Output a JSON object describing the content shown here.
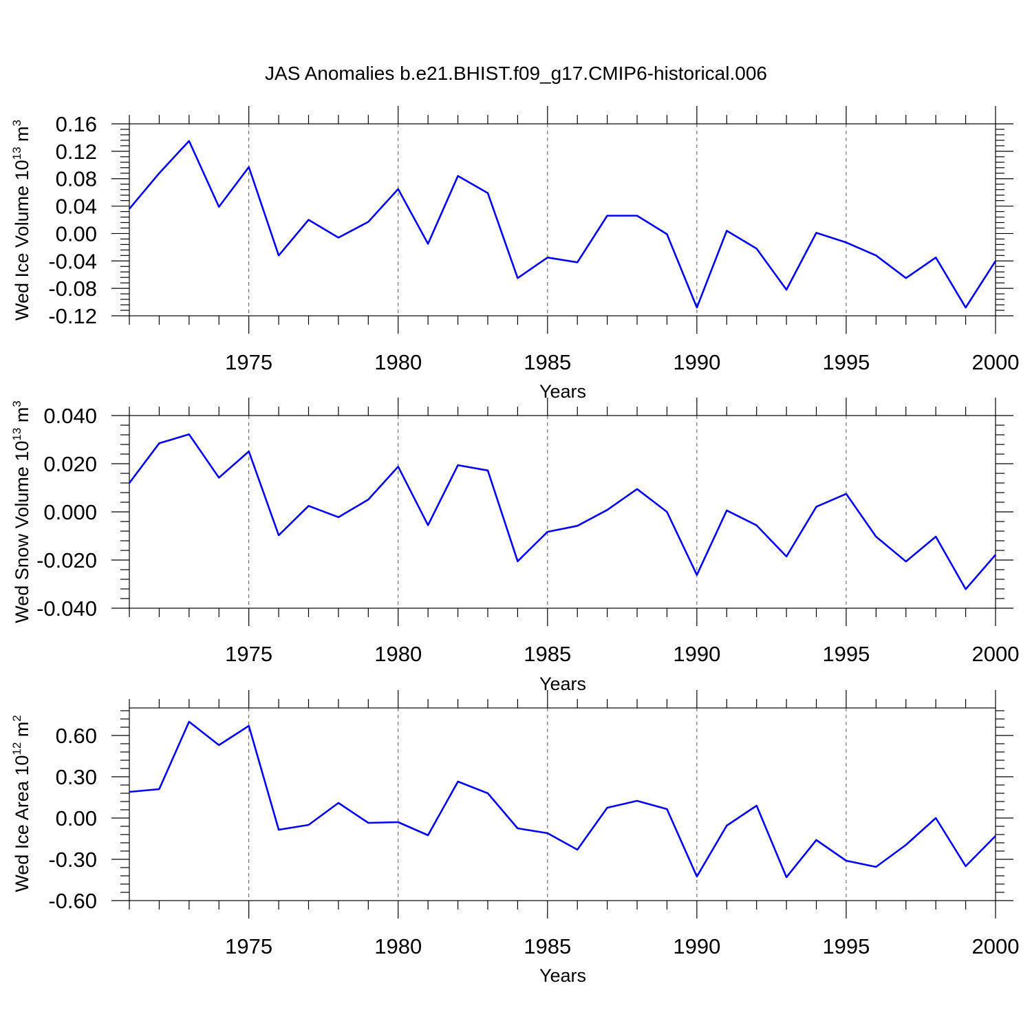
{
  "title": "JAS Anomalies b.e21.BHIST.f09_g17.CMIP6-historical.006",
  "colors": {
    "line": "#0000ff",
    "axis": "#000000",
    "grid": "#555555"
  },
  "chart_data": [
    {
      "type": "line",
      "ylabel": {
        "text": "Wed Ice Volume 10",
        "sup": "13",
        "unit": " m",
        "unit_sup": "3"
      },
      "xlabel": "Years",
      "xlim": [
        1971,
        2000
      ],
      "ylim": [
        -0.12,
        0.16
      ],
      "yticks": [
        -0.12,
        -0.08,
        -0.04,
        0.0,
        0.04,
        0.08,
        0.12,
        0.16
      ],
      "ytick_labels": [
        "-0.12",
        "-0.08",
        "-0.04",
        "0.00",
        "0.04",
        "0.08",
        "0.12",
        "0.16"
      ],
      "xticks": [
        1975,
        1980,
        1985,
        1990,
        1995,
        2000
      ],
      "xtick_labels": [
        "1975",
        "1980",
        "1985",
        "1990",
        "1995",
        "2000"
      ],
      "grid": "x-dashed",
      "x": [
        1971,
        1972,
        1973,
        1974,
        1975,
        1976,
        1977,
        1978,
        1979,
        1980,
        1981,
        1982,
        1983,
        1984,
        1985,
        1986,
        1987,
        1988,
        1989,
        1990,
        1991,
        1992,
        1993,
        1994,
        1995,
        1996,
        1997,
        1998,
        1999,
        2000
      ],
      "y": [
        0.036,
        0.088,
        0.135,
        0.039,
        0.097,
        -0.032,
        0.02,
        -0.006,
        0.017,
        0.065,
        -0.015,
        0.084,
        0.059,
        -0.065,
        -0.035,
        -0.042,
        0.026,
        0.026,
        -0.001,
        -0.108,
        0.004,
        -0.022,
        -0.082,
        0.001,
        -0.013,
        -0.032,
        -0.065,
        -0.035,
        -0.108,
        -0.04
      ]
    },
    {
      "type": "line",
      "ylabel": {
        "text": "Wed Snow Volume 10",
        "sup": "13",
        "unit": " m",
        "unit_sup": "3"
      },
      "xlabel": "Years",
      "xlim": [
        1971,
        2000
      ],
      "ylim": [
        -0.04,
        0.04
      ],
      "yticks": [
        -0.04,
        -0.02,
        0.0,
        0.02,
        0.04
      ],
      "ytick_labels": [
        "-0.040",
        "-0.020",
        "0.000",
        "0.020",
        "0.040"
      ],
      "xticks": [
        1975,
        1980,
        1985,
        1990,
        1995,
        2000
      ],
      "xtick_labels": [
        "1975",
        "1980",
        "1985",
        "1990",
        "1995",
        "2000"
      ],
      "grid": "x-dashed",
      "x": [
        1971,
        1972,
        1973,
        1974,
        1975,
        1976,
        1977,
        1978,
        1979,
        1980,
        1981,
        1982,
        1983,
        1984,
        1985,
        1986,
        1987,
        1988,
        1989,
        1990,
        1991,
        1992,
        1993,
        1994,
        1995,
        1996,
        1997,
        1998,
        1999,
        2000
      ],
      "y": [
        0.012,
        0.0285,
        0.0322,
        0.0142,
        0.0251,
        -0.0097,
        0.0025,
        -0.0022,
        0.0051,
        0.0188,
        -0.0055,
        0.0194,
        0.0172,
        -0.0205,
        -0.0083,
        -0.0058,
        0.0008,
        0.0095,
        0.0,
        -0.0262,
        0.0006,
        -0.0056,
        -0.0185,
        0.0021,
        0.0075,
        -0.0103,
        -0.0206,
        -0.0103,
        -0.0321,
        -0.0178
      ]
    },
    {
      "type": "line",
      "ylabel": {
        "text": "Wed Ice Area 10",
        "sup": "12",
        "unit": " m",
        "unit_sup": "2"
      },
      "xlabel": "Years",
      "xlim": [
        1971,
        2000
      ],
      "ylim": [
        -0.6,
        0.8
      ],
      "yticks": [
        -0.6,
        -0.3,
        0.0,
        0.3,
        0.6
      ],
      "ytick_labels": [
        "-0.60",
        "-0.30",
        "0.00",
        "0.30",
        "0.60"
      ],
      "xticks": [
        1975,
        1980,
        1985,
        1990,
        1995,
        2000
      ],
      "xtick_labels": [
        "1975",
        "1980",
        "1985",
        "1990",
        "1995",
        "2000"
      ],
      "grid": "x-dashed",
      "x": [
        1971,
        1972,
        1973,
        1974,
        1975,
        1976,
        1977,
        1978,
        1979,
        1980,
        1981,
        1982,
        1983,
        1984,
        1985,
        1986,
        1987,
        1988,
        1989,
        1990,
        1991,
        1992,
        1993,
        1994,
        1995,
        1996,
        1997,
        1998,
        1999,
        2000
      ],
      "y": [
        0.19,
        0.21,
        0.7,
        0.53,
        0.67,
        -0.085,
        -0.05,
        0.11,
        -0.035,
        -0.03,
        -0.125,
        0.265,
        0.18,
        -0.075,
        -0.11,
        -0.23,
        0.075,
        0.125,
        0.065,
        -0.425,
        -0.055,
        0.09,
        -0.43,
        -0.16,
        -0.31,
        -0.355,
        -0.195,
        0.0,
        -0.35,
        -0.13
      ]
    }
  ]
}
